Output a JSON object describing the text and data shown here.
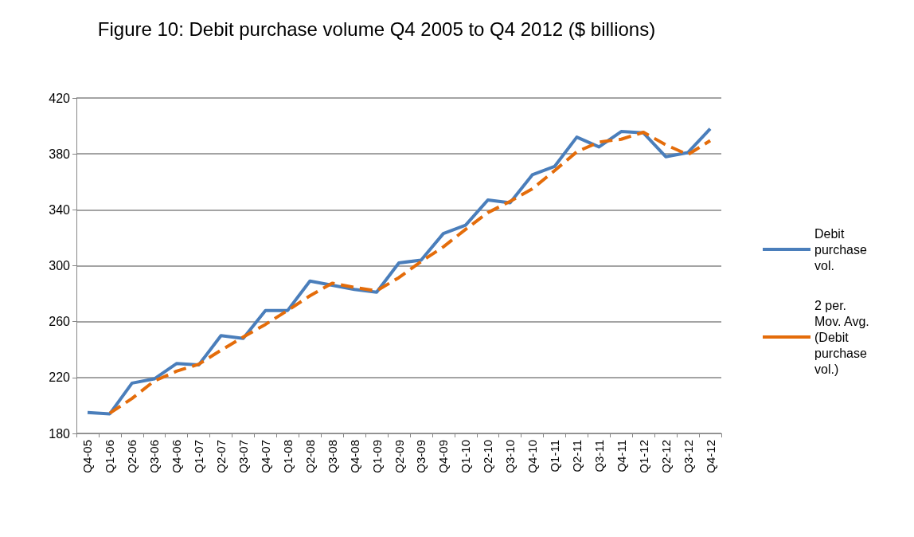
{
  "chart_data": {
    "type": "line",
    "title": "Figure 10: Debit purchase volume Q4 2005 to Q4 2012 ($ billions)",
    "categories": [
      "Q4-05",
      "Q1-06",
      "Q2-06",
      "Q3-06",
      "Q4-06",
      "Q1-07",
      "Q2-07",
      "Q3-07",
      "Q4-07",
      "Q1-08",
      "Q2-08",
      "Q3-08",
      "Q4-08",
      "Q1-09",
      "Q2-09",
      "Q3-09",
      "Q4-09",
      "Q1-10",
      "Q2-10",
      "Q3-10",
      "Q4-10",
      "Q1-11",
      "Q2-11",
      "Q3-11",
      "Q4-11",
      "Q1-12",
      "Q2-12",
      "Q3-12",
      "Q4-12"
    ],
    "series": [
      {
        "name": "Debit purchase vol.",
        "color": "#4a7ebb",
        "line_style": "solid",
        "values": [
          195,
          194,
          216,
          219,
          230,
          229,
          250,
          248,
          268,
          268,
          289,
          286,
          283,
          281,
          302,
          304,
          323,
          329,
          347,
          345,
          365,
          371,
          392,
          385,
          396,
          395,
          378,
          381,
          398
        ]
      },
      {
        "name": "2 per. Mov. Avg. (Debit purchase vol.)",
        "color": "#e46c0a",
        "line_style": "dashed",
        "values": [
          null,
          194.5,
          205,
          217.5,
          224.5,
          229.5,
          239.5,
          249,
          258,
          268,
          278.5,
          287.5,
          284.5,
          282,
          291.5,
          303,
          313.5,
          326,
          338,
          346,
          355,
          368,
          381.5,
          388.5,
          390.5,
          395.5,
          386.5,
          379.5,
          389.5
        ]
      }
    ],
    "ylim": [
      180,
      420
    ],
    "yticks": [
      180,
      220,
      260,
      300,
      340,
      380,
      420
    ],
    "grid": "y",
    "legend": "right",
    "marker": "none"
  }
}
